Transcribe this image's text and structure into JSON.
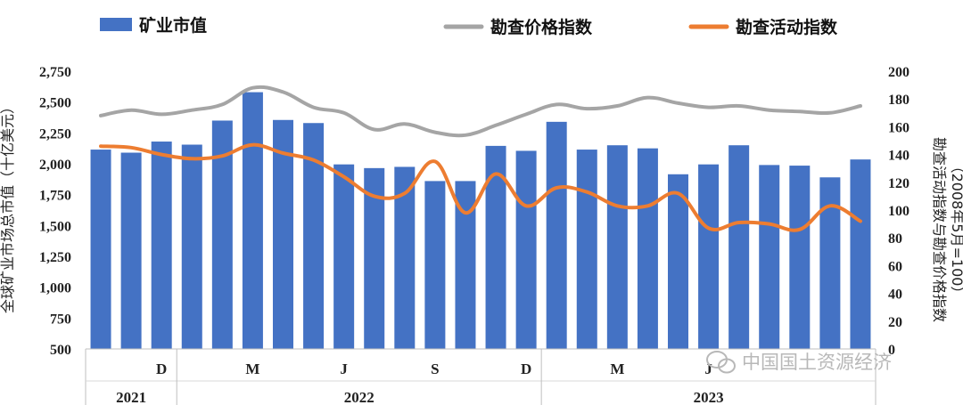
{
  "chart_data": {
    "type": "bar",
    "series": [
      {
        "name": "矿业市值",
        "kind": "bar",
        "axis": "left",
        "color": "#4472C4",
        "values": [
          2115,
          2090,
          2180,
          2155,
          2350,
          2580,
          2355,
          2330,
          1995,
          1965,
          1975,
          1860,
          1860,
          2145,
          2105,
          2340,
          2115,
          2150,
          2125,
          1915,
          1995,
          2150,
          1990,
          1985,
          1890,
          2035
        ]
      },
      {
        "name": "勘查价格指数",
        "kind": "line",
        "axis": "right",
        "color": "#A5A5A5",
        "values": [
          168,
          172,
          169,
          172,
          176,
          188,
          185,
          174,
          170,
          158,
          162,
          156,
          154,
          161,
          169,
          176,
          173,
          175,
          181,
          177,
          174,
          175,
          172,
          171,
          170,
          175
        ]
      },
      {
        "name": "勘查活动指数",
        "kind": "line",
        "axis": "right",
        "color": "#ED7D31",
        "values": [
          146,
          145,
          140,
          137,
          139,
          147,
          141,
          136,
          124,
          110,
          112,
          135,
          98,
          126,
          103,
          116,
          113,
          103,
          103,
          112,
          87,
          91,
          90,
          86,
          103,
          92
        ]
      }
    ],
    "left_axis": {
      "label": "全球矿业市场总市值（十亿美元）",
      "ylim": [
        500,
        2750
      ],
      "ticks": [
        "500",
        "750",
        "1,000",
        "1,250",
        "1,500",
        "1,750",
        "2,000",
        "2,250",
        "2,500",
        "2,750"
      ]
    },
    "right_axis": {
      "label": "勘查活动指数与勘查价格指数",
      "label_line2": "（2008年5月=100）",
      "ylim": [
        0,
        200
      ],
      "ticks": [
        "0",
        "20",
        "40",
        "60",
        "80",
        "100",
        "120",
        "140",
        "160",
        "180",
        "200"
      ]
    },
    "x_month_ticks": [
      {
        "label": "D",
        "index": 2
      },
      {
        "label": "M",
        "index": 5
      },
      {
        "label": "J",
        "index": 8
      },
      {
        "label": "S",
        "index": 11
      },
      {
        "label": "D",
        "index": 14
      },
      {
        "label": "M",
        "index": 17
      },
      {
        "label": "J",
        "index": 20
      }
    ],
    "x_year_groups": [
      {
        "label": "2021",
        "start": 0,
        "end": 2
      },
      {
        "label": "2022",
        "start": 3,
        "end": 14
      },
      {
        "label": "2023",
        "start": 15,
        "end": 25
      }
    ],
    "grid": false,
    "legend_position": "top"
  },
  "watermark": {
    "text": "中国国土资源经济",
    "icon": "wechat-icon"
  }
}
